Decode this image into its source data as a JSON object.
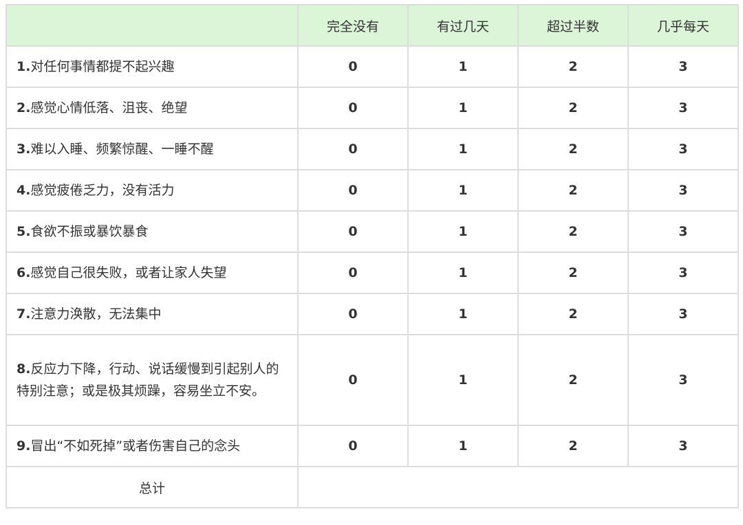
{
  "header": {
    "columns": [
      "",
      "完全没有",
      "有过几天",
      "超过半数",
      "几乎每天"
    ]
  },
  "rows": [
    {
      "num": "1.",
      "text": "对任何事情都提不起兴趣",
      "scores": [
        "0",
        "1",
        "2",
        "3"
      ]
    },
    {
      "num": "2.",
      "text": "感觉心情低落、沮丧、绝望",
      "scores": [
        "0",
        "1",
        "2",
        "3"
      ]
    },
    {
      "num": "3.",
      "text": "难以入睡、频繁惊醒、一睡不醒",
      "scores": [
        "0",
        "1",
        "2",
        "3"
      ]
    },
    {
      "num": "4.",
      "text": "感觉疲倦乏力，没有活力",
      "scores": [
        "0",
        "1",
        "2",
        "3"
      ]
    },
    {
      "num": "5.",
      "text": "食欲不振或暴饮暴食",
      "scores": [
        "0",
        "1",
        "2",
        "3"
      ]
    },
    {
      "num": "6.",
      "text": "感觉自己很失败，或者让家人失望",
      "scores": [
        "0",
        "1",
        "2",
        "3"
      ]
    },
    {
      "num": "7.",
      "text": "注意力涣散，无法集中",
      "scores": [
        "0",
        "1",
        "2",
        "3"
      ]
    },
    {
      "num": "8.",
      "text": "反应力下降，行动、说话缓慢到引起别人的特别注意；或是极其烦躁，容易坐立不安。",
      "scores": [
        "0",
        "1",
        "2",
        "3"
      ]
    },
    {
      "num": "9.",
      "text": "冒出“不如死掉”或者伤害自己的念头",
      "scores": [
        "0",
        "1",
        "2",
        "3"
      ]
    }
  ],
  "footer": {
    "label": "总计",
    "value": ""
  },
  "colors": {
    "header_bg": "#dcf4d8",
    "border": "#dddddd",
    "text": "#333333"
  }
}
